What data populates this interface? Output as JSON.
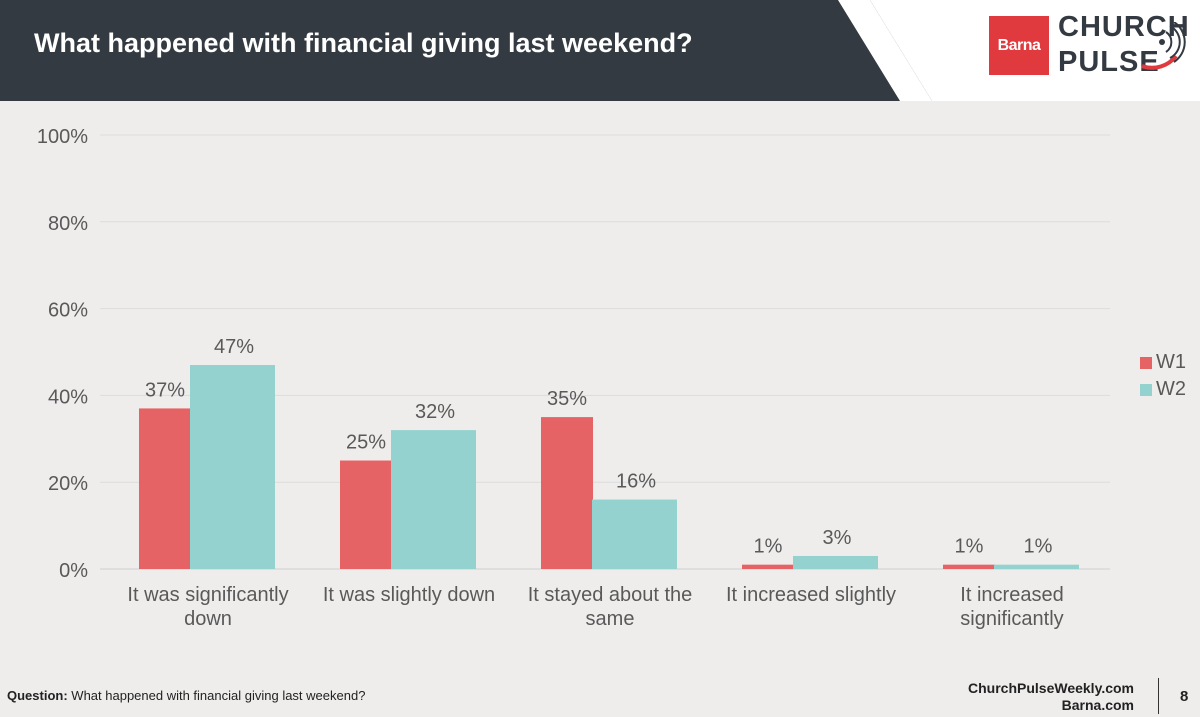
{
  "header": {
    "title": "What happened with financial giving last weekend?",
    "logo_barna": "Barna",
    "logo_church": "CHURCH",
    "logo_pulse": "PULSE"
  },
  "chart_data": {
    "type": "bar",
    "categories": [
      [
        "It was significantly",
        "down"
      ],
      [
        "It was slightly down"
      ],
      [
        "It stayed about the",
        "same"
      ],
      [
        "It increased slightly"
      ],
      [
        "It increased",
        "significantly"
      ]
    ],
    "series": [
      {
        "name": "W1",
        "values": [
          37,
          25,
          35,
          1,
          1
        ],
        "labels": [
          "37%",
          "25%",
          "35%",
          "1%",
          "1%"
        ],
        "color": "#e56364"
      },
      {
        "name": "W2",
        "values": [
          47,
          32,
          16,
          3,
          1
        ],
        "labels": [
          "47%",
          "32%",
          "16%",
          "3%",
          "1%"
        ],
        "color": "#94d2cf"
      }
    ],
    "yticks": [
      "0%",
      "20%",
      "40%",
      "60%",
      "80%",
      "100%"
    ],
    "ylim": [
      0,
      100
    ],
    "grid": true,
    "legend_position": "right"
  },
  "footer": {
    "question_label": "Question:",
    "question_text": "What happened with financial giving last weekend?",
    "link1": "ChurchPulseWeekly.com",
    "link2": "Barna.com",
    "page_number": "8"
  }
}
